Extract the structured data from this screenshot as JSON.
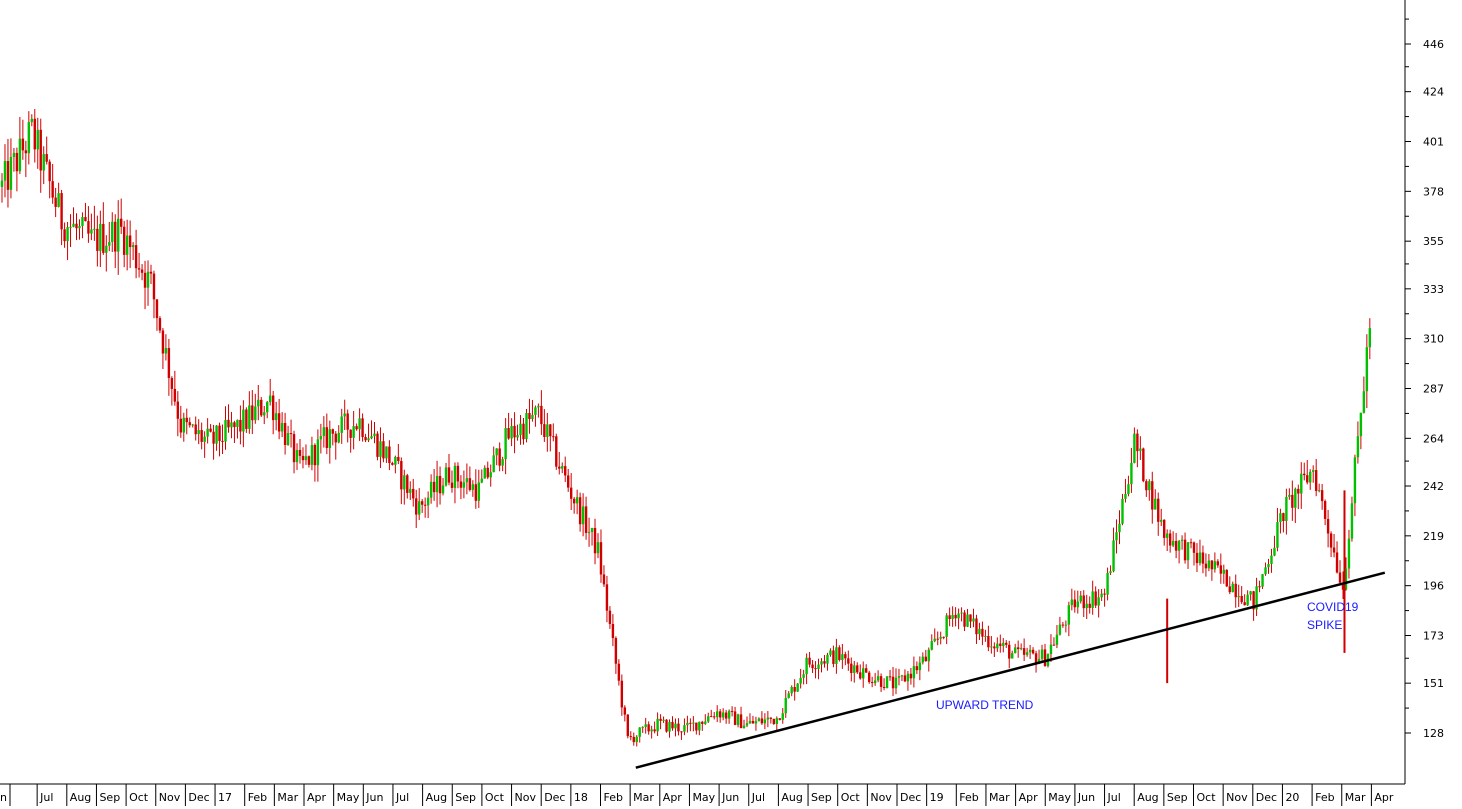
{
  "chart_data": {
    "type": "candlestick",
    "title": "",
    "xlabel": "",
    "ylabel": "",
    "ylim": [
      108,
      468
    ],
    "y_ticks": [
      128,
      151,
      173,
      196,
      219,
      242,
      264,
      287,
      310,
      333,
      355,
      378,
      401,
      424,
      446
    ],
    "x_labels": [
      "Jun",
      "Jul",
      "Aug",
      "Sep",
      "Oct",
      "Nov",
      "Dec",
      "17",
      "Feb",
      "Mar",
      "Apr",
      "May",
      "Jun",
      "Jul",
      "Aug",
      "Sep",
      "Oct",
      "Nov",
      "Dec",
      "18",
      "Feb",
      "Mar",
      "Apr",
      "May",
      "Jun",
      "Jul",
      "Aug",
      "Sep",
      "Oct",
      "Nov",
      "Dec",
      "19",
      "Feb",
      "Mar",
      "Apr",
      "May",
      "Jun",
      "Jul",
      "Aug",
      "Sep",
      "Oct",
      "Nov",
      "Dec",
      "20",
      "Feb",
      "Mar",
      "Apr"
    ],
    "x_label_display": [
      "n",
      "Jul",
      "Aug",
      "Sep",
      "Oct",
      "Nov",
      "Dec",
      "17",
      "Feb",
      "Mar",
      "Apr",
      "May",
      "Jun",
      "Jul",
      "Aug",
      "Sep",
      "Oct",
      "Nov",
      "Dec",
      "18",
      "Feb",
      "Mar",
      "Apr",
      "May",
      "Jun",
      "Jul",
      "Aug",
      "Sep",
      "Oct",
      "Nov",
      "Dec",
      "19",
      "Feb",
      "Mar",
      "Apr",
      "May",
      "Jun",
      "Jul",
      "Aug",
      "Sep",
      "Oct",
      "Nov",
      "Dec",
      "20",
      "Feb",
      "Mar",
      "Apr"
    ],
    "price_path": [
      {
        "month": "Jun 2016",
        "close": 380
      },
      {
        "month": "Jul 2016",
        "close": 405
      },
      {
        "month": "Aug 2016",
        "close": 365
      },
      {
        "month": "Sep 2016",
        "close": 355
      },
      {
        "month": "Oct 2016",
        "close": 360
      },
      {
        "month": "Nov 2016",
        "close": 335
      },
      {
        "month": "Dec 2016",
        "close": 270
      },
      {
        "month": "Jan 2017",
        "close": 262
      },
      {
        "month": "Feb 2017",
        "close": 270
      },
      {
        "month": "Mar 2017",
        "close": 282
      },
      {
        "month": "Apr 2017",
        "close": 250
      },
      {
        "month": "May 2017",
        "close": 266
      },
      {
        "month": "Jun 2017",
        "close": 272
      },
      {
        "month": "Jul 2017",
        "close": 255
      },
      {
        "month": "Aug 2017",
        "close": 232
      },
      {
        "month": "Sep 2017",
        "close": 248
      },
      {
        "month": "Oct 2017",
        "close": 240
      },
      {
        "month": "Nov 2017",
        "close": 265
      },
      {
        "month": "Dec 2017",
        "close": 275
      },
      {
        "month": "Jan 2018",
        "close": 242
      },
      {
        "month": "Feb 2018",
        "close": 212
      },
      {
        "month": "Mar 2018",
        "close": 125
      },
      {
        "month": "Apr 2018",
        "close": 132
      },
      {
        "month": "May 2018",
        "close": 130
      },
      {
        "month": "Jun 2018",
        "close": 138
      },
      {
        "month": "Jul 2018",
        "close": 132
      },
      {
        "month": "Aug 2018",
        "close": 135
      },
      {
        "month": "Sep 2018",
        "close": 160
      },
      {
        "month": "Oct 2018",
        "close": 164
      },
      {
        "month": "Nov 2018",
        "close": 155
      },
      {
        "month": "Dec 2018",
        "close": 150
      },
      {
        "month": "Jan 2019",
        "close": 162
      },
      {
        "month": "Feb 2019",
        "close": 185
      },
      {
        "month": "Mar 2019",
        "close": 172
      },
      {
        "month": "Apr 2019",
        "close": 164
      },
      {
        "month": "May 2019",
        "close": 163
      },
      {
        "month": "Jun 2019",
        "close": 188
      },
      {
        "month": "Jul 2019",
        "close": 192
      },
      {
        "month": "Aug 2019",
        "close": 262
      },
      {
        "month": "Sep 2019",
        "close": 220
      },
      {
        "month": "Oct 2019",
        "close": 210
      },
      {
        "month": "Nov 2019",
        "close": 200
      },
      {
        "month": "Dec 2019",
        "close": 188
      },
      {
        "month": "Jan 2020",
        "close": 230
      },
      {
        "month": "Feb 2020",
        "close": 250
      },
      {
        "month": "Mar 2020",
        "close": 195
      },
      {
        "month": "Apr 2020",
        "close": 330
      }
    ],
    "trendline": {
      "start": {
        "month": "Mar 2018",
        "value": 112
      },
      "end": {
        "month": "Apr 2020",
        "value": 202
      }
    },
    "annotations": [
      {
        "text": "UPWARD TREND"
      },
      {
        "text": "COVID19"
      },
      {
        "text": "SPIKE"
      }
    ],
    "colors": {
      "up": "#00c000",
      "down": "#d00000",
      "trend": "#000000",
      "annotation": "#1a1aff"
    },
    "grid": false
  }
}
